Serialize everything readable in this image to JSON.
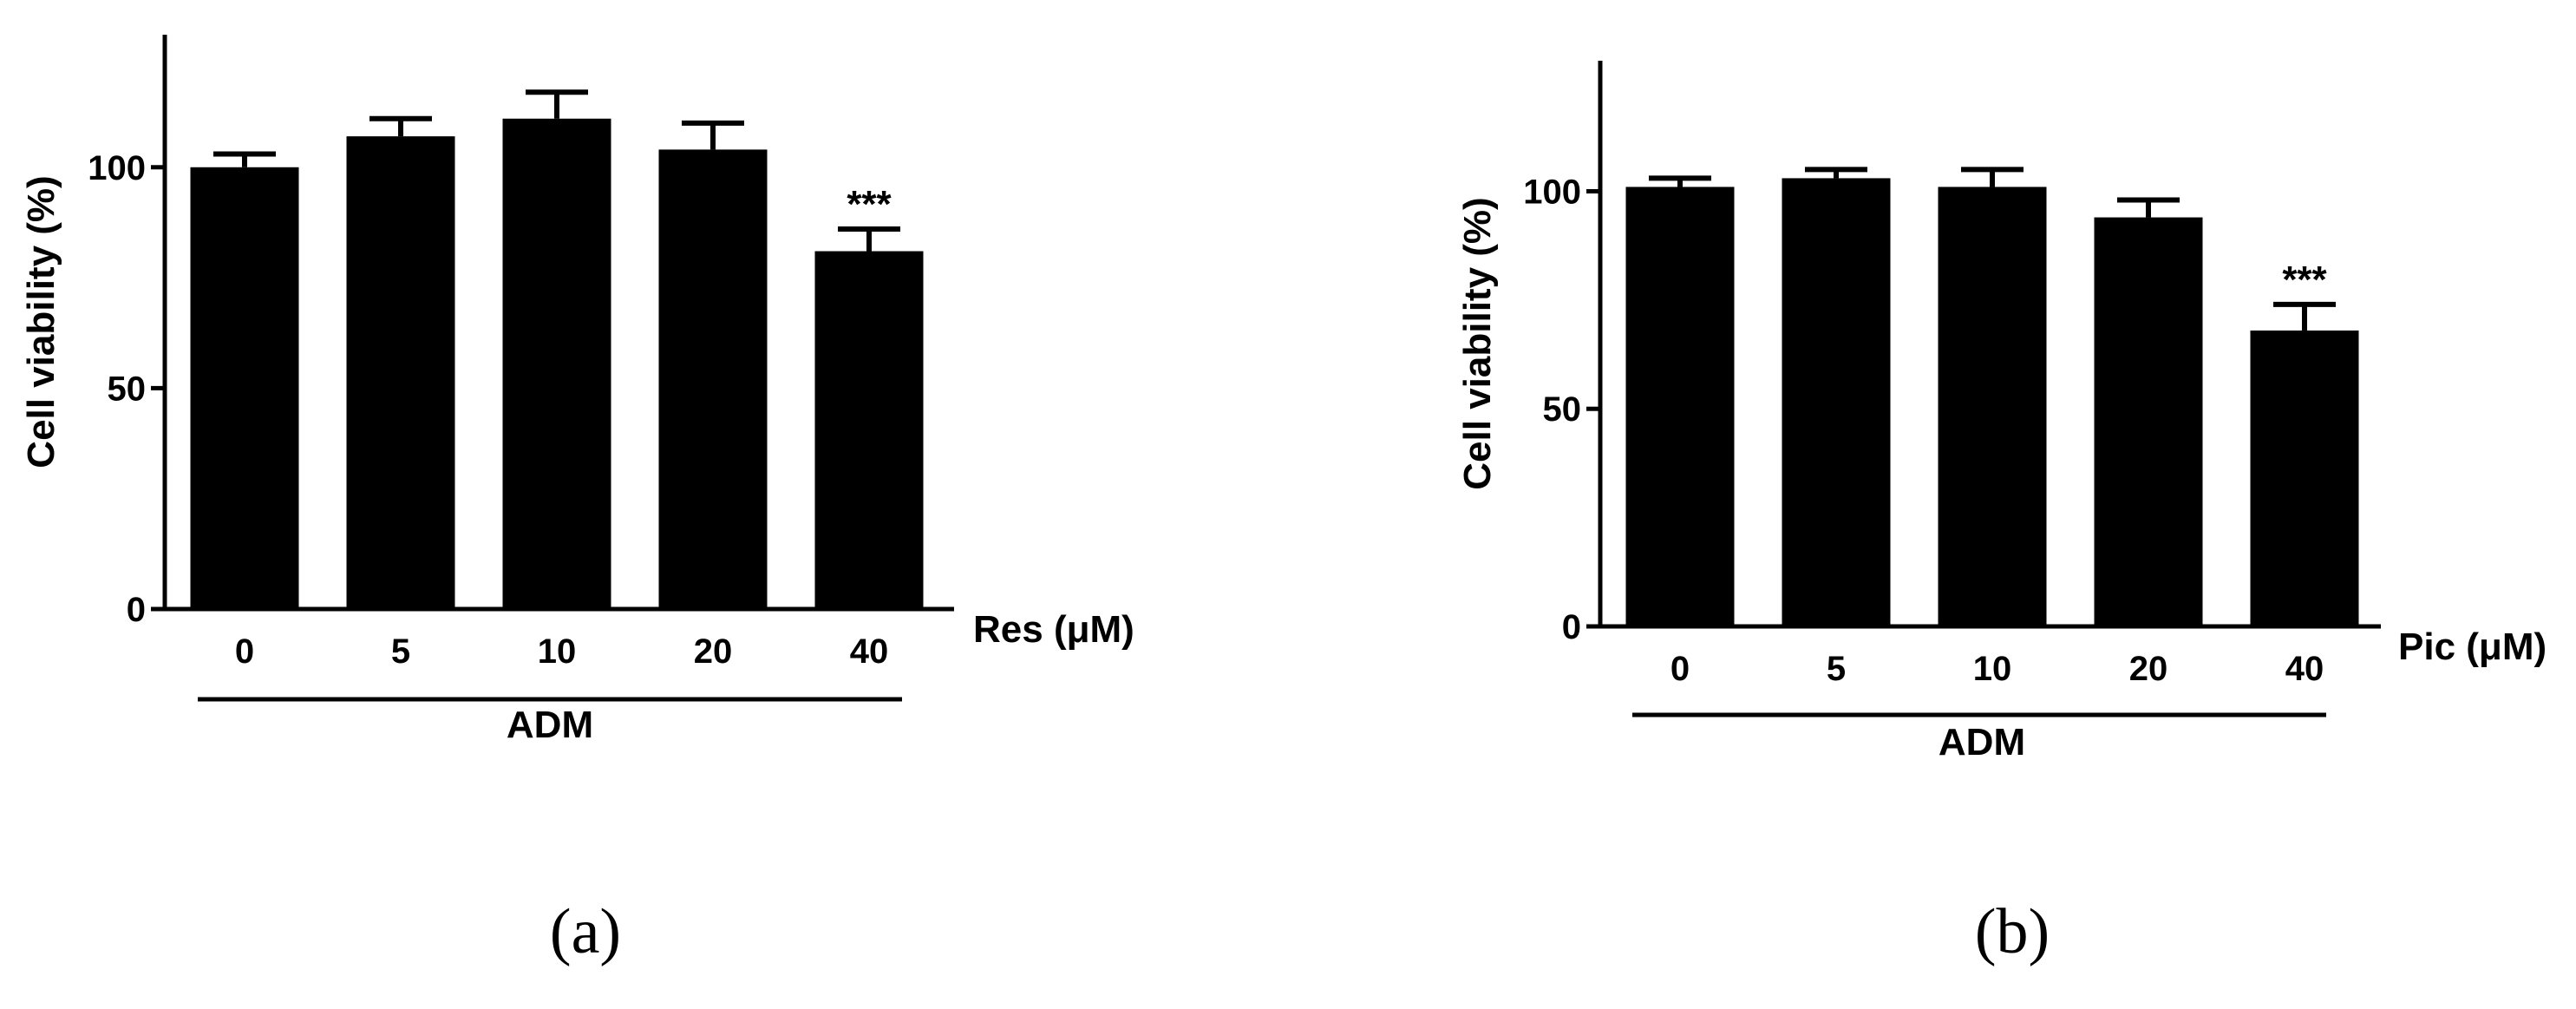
{
  "chart_data": [
    {
      "type": "bar",
      "panel_label": "(a)",
      "ylabel": "Cell viability (%)",
      "xlabel": "Res (μM)",
      "group_label": "ADM",
      "categories": [
        "0",
        "5",
        "10",
        "20",
        "40"
      ],
      "values": [
        100,
        107,
        111,
        104,
        81
      ],
      "errors": [
        3,
        4,
        6,
        6,
        5
      ],
      "annotations": [
        "",
        "",
        "",
        "",
        "***"
      ],
      "ylim": [
        0,
        130
      ],
      "yticks": [
        0,
        50,
        100
      ],
      "bar_color": "#000000"
    },
    {
      "type": "bar",
      "panel_label": "(b)",
      "ylabel": "Cell viability (%)",
      "xlabel": "Pic (μM)",
      "group_label": "ADM",
      "categories": [
        "0",
        "5",
        "10",
        "20",
        "40"
      ],
      "values": [
        101,
        103,
        101,
        94,
        68
      ],
      "errors": [
        2,
        2,
        4,
        4,
        6
      ],
      "annotations": [
        "",
        "",
        "",
        "",
        "***"
      ],
      "ylim": [
        0,
        130
      ],
      "yticks": [
        0,
        50,
        100
      ],
      "bar_color": "#000000"
    }
  ]
}
